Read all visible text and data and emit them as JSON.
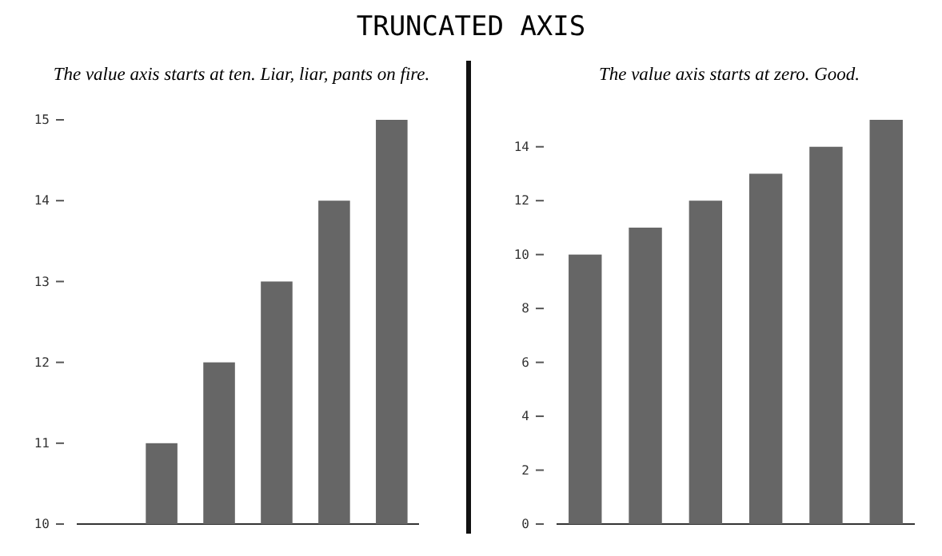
{
  "chart_data": [
    {
      "type": "bar",
      "title": "TRUNCATED AXIS",
      "subtitle": "The value axis starts at ten. Liar, liar, pants on fire.",
      "categories": [
        null,
        null,
        null,
        null,
        null,
        null
      ],
      "series": [
        {
          "color": "#666666",
          "values": [
            10,
            11,
            12,
            13,
            14,
            15
          ]
        }
      ],
      "ylim": [
        10,
        15
      ],
      "yticks": [
        10,
        11,
        12,
        13,
        14,
        15
      ]
    },
    {
      "type": "bar",
      "subtitle": "The value axis starts at zero. Good.",
      "categories": [
        null,
        null,
        null,
        null,
        null,
        null
      ],
      "series": [
        {
          "color": "#666666",
          "values": [
            10,
            11,
            12,
            13,
            14,
            15
          ]
        }
      ],
      "ylim": [
        0,
        15
      ],
      "yticks": [
        0,
        2,
        4,
        6,
        8,
        10,
        12,
        14
      ]
    }
  ]
}
